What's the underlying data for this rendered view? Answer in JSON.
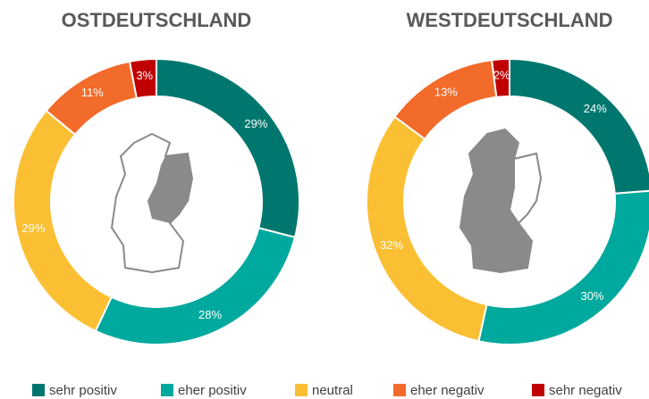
{
  "chart_data": [
    {
      "type": "pie",
      "title": "OSTDEUTSCHLAND",
      "categories": [
        "sehr positiv",
        "eher positiv",
        "neutral",
        "eher negativ",
        "sehr negativ"
      ],
      "values": [
        29,
        28,
        29,
        11,
        3
      ],
      "value_labels": [
        "29%",
        "28%",
        "29%",
        "11%",
        "3%"
      ],
      "colors": [
        "#00776e",
        "#00a99d",
        "#fbbf33",
        "#f26b2a",
        "#c00000"
      ]
    },
    {
      "type": "pie",
      "title": "WESTDEUTSCHLAND",
      "categories": [
        "sehr positiv",
        "eher positiv",
        "neutral",
        "eher negativ",
        "sehr negativ"
      ],
      "values": [
        24,
        30,
        32,
        13,
        2
      ],
      "value_labels": [
        "24%",
        "30%",
        "32%",
        "13%",
        "2%"
      ],
      "colors": [
        "#00776e",
        "#00a99d",
        "#fbbf33",
        "#f26b2a",
        "#c00000"
      ]
    }
  ]
}
